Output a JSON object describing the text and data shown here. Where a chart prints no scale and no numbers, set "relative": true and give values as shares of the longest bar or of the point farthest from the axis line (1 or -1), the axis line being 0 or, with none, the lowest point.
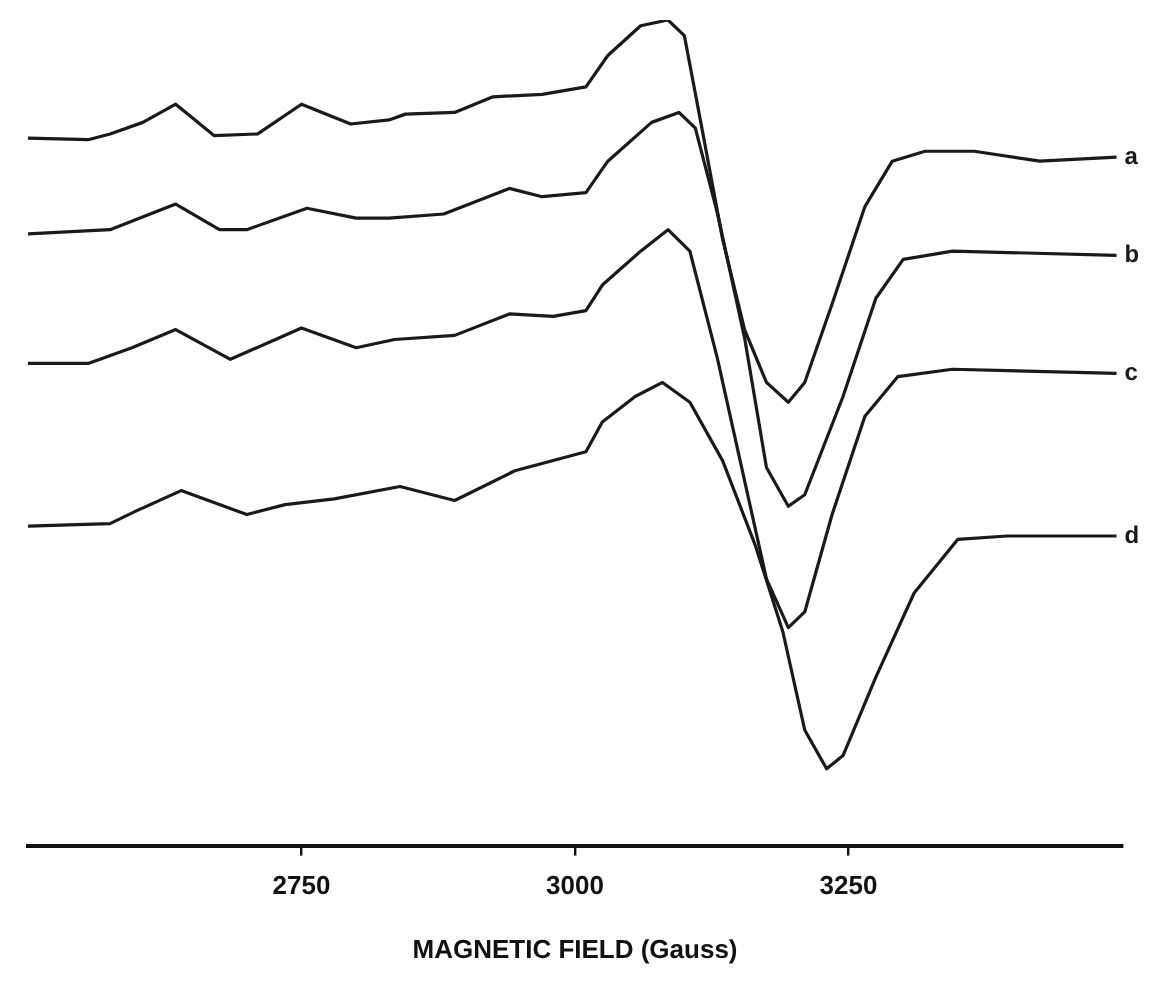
{
  "chart_data": {
    "type": "line",
    "relative": true,
    "xlabel": "MAGNETIC FIELD (Gauss)",
    "xlim": [
      2500,
      3500
    ],
    "xticks": [
      2750,
      3000,
      3250
    ],
    "marker": "none",
    "line_style": "solid",
    "legend": false,
    "series": [
      {
        "name": "a",
        "color": "#1a1a1a",
        "x": [
          2500,
          2555,
          2575,
          2605,
          2635,
          2670,
          2710,
          2750,
          2795,
          2830,
          2845,
          2890,
          2925,
          2970,
          3010,
          3030,
          3060,
          3085,
          3100,
          3115,
          3135,
          3155,
          3175,
          3195,
          3210,
          3235,
          3265,
          3290,
          3320,
          3365,
          3425,
          3495
        ],
        "values": [
          0.857,
          0.855,
          0.862,
          0.876,
          0.898,
          0.86,
          0.862,
          0.898,
          0.874,
          0.879,
          0.886,
          0.888,
          0.907,
          0.91,
          0.919,
          0.957,
          0.993,
          1,
          0.981,
          0.876,
          0.734,
          0.625,
          0.561,
          0.537,
          0.561,
          0.656,
          0.774,
          0.829,
          0.841,
          0.841,
          0.829,
          0.834
        ]
      },
      {
        "name": "b",
        "color": "#1a1a1a",
        "x": [
          2500,
          2575,
          2635,
          2675,
          2700,
          2755,
          2800,
          2830,
          2880,
          2940,
          2970,
          3010,
          3030,
          3070,
          3095,
          3110,
          3130,
          3155,
          3175,
          3195,
          3210,
          3245,
          3275,
          3300,
          3345,
          3495
        ],
        "values": [
          0.741,
          0.746,
          0.777,
          0.746,
          0.746,
          0.772,
          0.76,
          0.76,
          0.765,
          0.796,
          0.786,
          0.791,
          0.829,
          0.876,
          0.888,
          0.869,
          0.767,
          0.615,
          0.458,
          0.411,
          0.425,
          0.544,
          0.663,
          0.71,
          0.72,
          0.715
        ]
      },
      {
        "name": "c",
        "color": "#1a1a1a",
        "x": [
          2500,
          2555,
          2595,
          2635,
          2685,
          2750,
          2800,
          2835,
          2890,
          2940,
          2980,
          3010,
          3025,
          3060,
          3085,
          3105,
          3130,
          3155,
          3175,
          3195,
          3210,
          3235,
          3265,
          3295,
          3345,
          3495
        ],
        "values": [
          0.584,
          0.584,
          0.603,
          0.625,
          0.589,
          0.627,
          0.603,
          0.613,
          0.618,
          0.644,
          0.641,
          0.648,
          0.679,
          0.72,
          0.746,
          0.72,
          0.591,
          0.442,
          0.323,
          0.264,
          0.283,
          0.401,
          0.52,
          0.568,
          0.577,
          0.572
        ]
      },
      {
        "name": "d",
        "color": "#1a1a1a",
        "x": [
          2500,
          2575,
          2600,
          2640,
          2700,
          2735,
          2780,
          2840,
          2890,
          2945,
          3010,
          3025,
          3055,
          3080,
          3105,
          3135,
          3165,
          3190,
          3210,
          3230,
          3245,
          3275,
          3310,
          3350,
          3395,
          3495
        ],
        "values": [
          0.387,
          0.39,
          0.406,
          0.43,
          0.401,
          0.413,
          0.42,
          0.435,
          0.418,
          0.454,
          0.477,
          0.513,
          0.544,
          0.561,
          0.537,
          0.466,
          0.363,
          0.259,
          0.14,
          0.093,
          0.109,
          0.204,
          0.306,
          0.371,
          0.375,
          0.375
        ]
      }
    ]
  }
}
